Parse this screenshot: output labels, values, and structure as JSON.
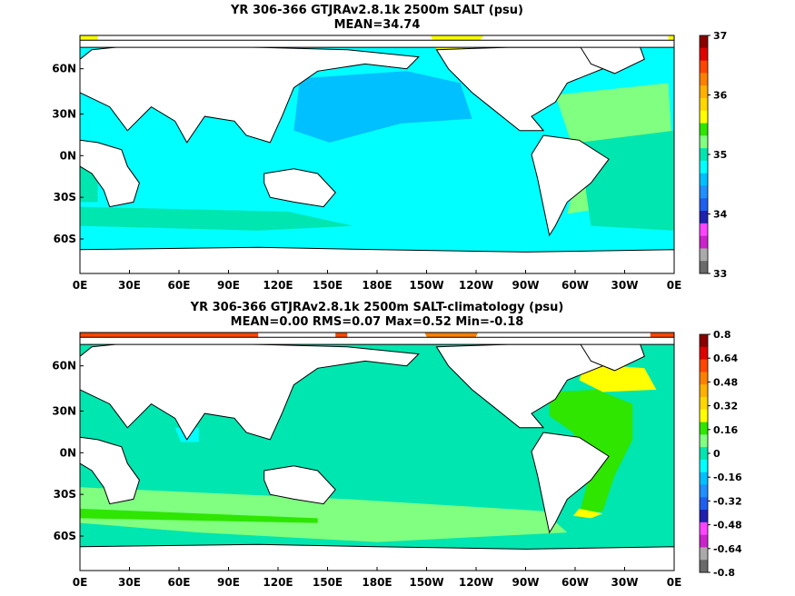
{
  "chart_data": [
    {
      "type": "heatmap",
      "title": "YR 306-366 GTJRAv2.8.1k 2500m SALT (psu)",
      "subtitle": "MEAN=34.74",
      "xticks": [
        "0E",
        "30E",
        "60E",
        "90E",
        "120E",
        "150E",
        "180E",
        "150W",
        "120W",
        "90W",
        "60W",
        "30W",
        "0E"
      ],
      "yticks": [
        "60N",
        "30N",
        "0N",
        "30S",
        "60S"
      ],
      "colorbar_ticks": [
        "37",
        "36",
        "35",
        "34",
        "33"
      ],
      "colorbar_range": [
        33,
        37
      ],
      "colors": [
        "#6a6a6a",
        "#aaaaaa",
        "#cc22cc",
        "#ff44ff",
        "#2020b0",
        "#1e5ff0",
        "#1e90ff",
        "#00c0ff",
        "#00ffff",
        "#00e6b0",
        "#80ff80",
        "#2ee600",
        "#ffff00",
        "#ffd700",
        "#ffb000",
        "#ff8000",
        "#ff4500",
        "#e00000",
        "#8b0000"
      ]
    },
    {
      "type": "heatmap",
      "title": "YR 306-366 GTJRAv2.8.1k 2500m SALT-climatology (psu)",
      "subtitle": "MEAN=0.00   RMS=0.07   Max=0.52   Min=-0.18",
      "xticks": [
        "0E",
        "30E",
        "60E",
        "90E",
        "120E",
        "150E",
        "180E",
        "150W",
        "120W",
        "90W",
        "60W",
        "30W",
        "0E"
      ],
      "yticks": [
        "60N",
        "30N",
        "0N",
        "30S",
        "60S"
      ],
      "colorbar_ticks": [
        "0.8",
        "0.64",
        "0.48",
        "0.32",
        "0.16",
        "0",
        "-0.16",
        "-0.32",
        "-0.48",
        "-0.64",
        "-0.8"
      ],
      "colorbar_range": [
        -0.8,
        0.8
      ],
      "colors": [
        "#6a6a6a",
        "#aaaaaa",
        "#cc22cc",
        "#ff44ff",
        "#2020b0",
        "#1e5ff0",
        "#1e90ff",
        "#00c0ff",
        "#00ffff",
        "#00e6b0",
        "#80ff80",
        "#2ee600",
        "#ffff00",
        "#ffd700",
        "#ffb000",
        "#ff8000",
        "#ff4500",
        "#e00000",
        "#8b0000"
      ]
    }
  ]
}
